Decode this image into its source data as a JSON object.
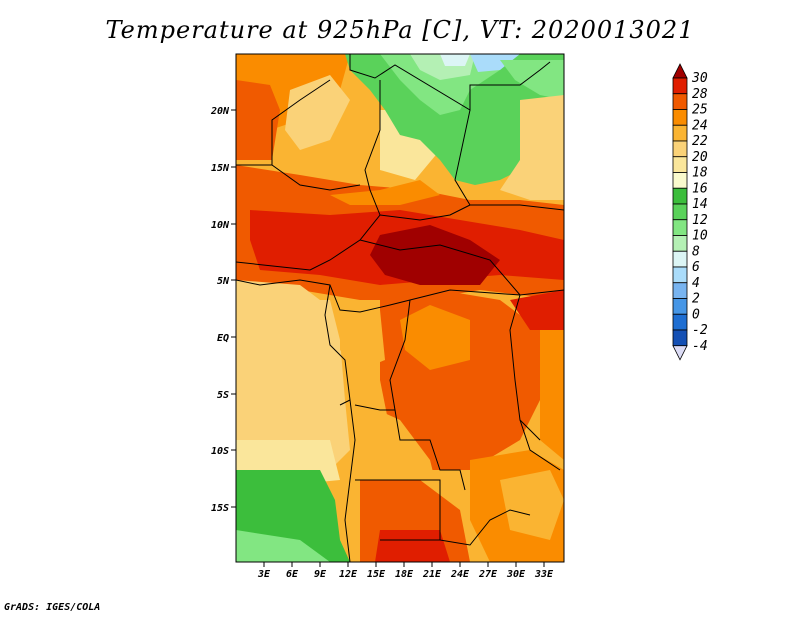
{
  "title": "Temperature at 925hPa [C], VT: 2020013021",
  "footer": "GrADS: IGES/COLA",
  "map": {
    "lat_labels": [
      "20N",
      "15N",
      "10N",
      "5N",
      "EQ",
      "5S",
      "10S",
      "15S"
    ],
    "lon_labels": [
      "3E",
      "6E",
      "9E",
      "12E",
      "15E",
      "18E",
      "21E",
      "24E",
      "27E",
      "30E",
      "33E"
    ]
  },
  "colorbar": {
    "levels": [
      "30",
      "28",
      "25",
      "24",
      "22",
      "20",
      "18",
      "16",
      "14",
      "12",
      "10",
      "8",
      "6",
      "4",
      "2",
      "0",
      "-2",
      "-4"
    ],
    "colors": [
      "#a00000",
      "#e01e00",
      "#f05a00",
      "#fa8c00",
      "#fab432",
      "#fad278",
      "#fae69b",
      "#fafacd",
      "#3cbe3c",
      "#5ad25a",
      "#82e682",
      "#b4f0b4",
      "#dcf5f5",
      "#aadcfa",
      "#78b4f0",
      "#4696e6",
      "#1e6ed2",
      "#1450b4",
      "#0a0a78"
    ]
  }
}
